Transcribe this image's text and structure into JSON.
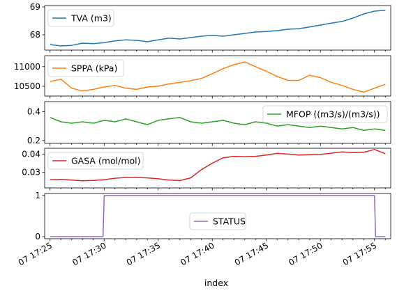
{
  "chart_data": {
    "type": "line",
    "xlabel": "index",
    "x_ticks": [
      "07 17:25",
      "07 17:30",
      "07 17:35",
      "07 17:40",
      "07 17:45",
      "07 17:50",
      "07 17:55"
    ],
    "x_range_minutes": [
      -0.5,
      31.5
    ],
    "panels": [
      {
        "series": [
          {
            "name": "TVA (m3)",
            "color": "#1f77b4"
          }
        ],
        "legend": "upper-left",
        "ylim": [
          67.45,
          69.05
        ],
        "yticks": [
          {
            "value": 68,
            "label": "68"
          },
          {
            "value": 69,
            "label": "69"
          }
        ],
        "points": [
          [
            0,
            67.65
          ],
          [
            1,
            67.6
          ],
          [
            2,
            67.62
          ],
          [
            3,
            67.7
          ],
          [
            4,
            67.68
          ],
          [
            5,
            67.72
          ],
          [
            6,
            67.78
          ],
          [
            7,
            67.82
          ],
          [
            8,
            67.8
          ],
          [
            9,
            67.75
          ],
          [
            10,
            67.82
          ],
          [
            11,
            67.88
          ],
          [
            12,
            67.85
          ],
          [
            13,
            67.9
          ],
          [
            14,
            67.95
          ],
          [
            15,
            67.98
          ],
          [
            16,
            67.95
          ],
          [
            17,
            68.0
          ],
          [
            18,
            68.05
          ],
          [
            19,
            68.1
          ],
          [
            20,
            68.12
          ],
          [
            21,
            68.15
          ],
          [
            22,
            68.2
          ],
          [
            23,
            68.22
          ],
          [
            24,
            68.28
          ],
          [
            25,
            68.35
          ],
          [
            26,
            68.42
          ],
          [
            27,
            68.48
          ],
          [
            28,
            68.6
          ],
          [
            29,
            68.75
          ],
          [
            30,
            68.85
          ],
          [
            31,
            68.88
          ]
        ]
      },
      {
        "series": [
          {
            "name": "SPPA (kPa)",
            "color": "#ff7f0e"
          }
        ],
        "legend": "upper-left",
        "ylim": [
          10250,
          11280
        ],
        "yticks": [
          {
            "value": 10500,
            "label": "10500"
          },
          {
            "value": 11000,
            "label": "11000"
          }
        ],
        "points": [
          [
            0,
            10620
          ],
          [
            1,
            10680
          ],
          [
            2,
            10450
          ],
          [
            3,
            10380
          ],
          [
            4,
            10420
          ],
          [
            5,
            10480
          ],
          [
            6,
            10520
          ],
          [
            7,
            10450
          ],
          [
            8,
            10420
          ],
          [
            9,
            10480
          ],
          [
            10,
            10500
          ],
          [
            11,
            10560
          ],
          [
            12,
            10600
          ],
          [
            13,
            10640
          ],
          [
            14,
            10700
          ],
          [
            15,
            10820
          ],
          [
            16,
            10950
          ],
          [
            17,
            11050
          ],
          [
            18,
            11120
          ],
          [
            19,
            11000
          ],
          [
            20,
            10880
          ],
          [
            21,
            10750
          ],
          [
            22,
            10650
          ],
          [
            23,
            10650
          ],
          [
            24,
            10780
          ],
          [
            25,
            10720
          ],
          [
            26,
            10600
          ],
          [
            27,
            10520
          ],
          [
            28,
            10420
          ],
          [
            29,
            10350
          ],
          [
            30,
            10450
          ],
          [
            31,
            10550
          ]
        ]
      },
      {
        "series": [
          {
            "name": "MFOP ((m3/s)/(m3/s))",
            "color": "#2ca02c"
          }
        ],
        "legend": "upper-right",
        "ylim": [
          0.18,
          0.47
        ],
        "yticks": [
          {
            "value": 0.2,
            "label": "0.2"
          },
          {
            "value": 0.4,
            "label": "0.4"
          }
        ],
        "points": [
          [
            0,
            0.36
          ],
          [
            1,
            0.33
          ],
          [
            2,
            0.32
          ],
          [
            3,
            0.33
          ],
          [
            4,
            0.32
          ],
          [
            5,
            0.34
          ],
          [
            6,
            0.33
          ],
          [
            7,
            0.35
          ],
          [
            8,
            0.33
          ],
          [
            9,
            0.31
          ],
          [
            10,
            0.34
          ],
          [
            11,
            0.35
          ],
          [
            12,
            0.36
          ],
          [
            13,
            0.33
          ],
          [
            14,
            0.32
          ],
          [
            15,
            0.33
          ],
          [
            16,
            0.34
          ],
          [
            17,
            0.32
          ],
          [
            18,
            0.31
          ],
          [
            19,
            0.33
          ],
          [
            20,
            0.32
          ],
          [
            21,
            0.3
          ],
          [
            22,
            0.31
          ],
          [
            23,
            0.3
          ],
          [
            24,
            0.29
          ],
          [
            25,
            0.3
          ],
          [
            26,
            0.29
          ],
          [
            27,
            0.28
          ],
          [
            28,
            0.29
          ],
          [
            29,
            0.27
          ],
          [
            30,
            0.28
          ],
          [
            31,
            0.27
          ]
        ]
      },
      {
        "series": [
          {
            "name": "GASA (mol/mol)",
            "color": "#d62728"
          }
        ],
        "legend": "upper-left",
        "ylim": [
          0.0215,
          0.0432
        ],
        "yticks": [
          {
            "value": 0.03,
            "label": "0.03"
          },
          {
            "value": 0.04,
            "label": "0.04"
          }
        ],
        "points": [
          [
            0,
            0.026
          ],
          [
            1,
            0.0262
          ],
          [
            2,
            0.0258
          ],
          [
            3,
            0.0254
          ],
          [
            4,
            0.0256
          ],
          [
            5,
            0.026
          ],
          [
            6,
            0.0268
          ],
          [
            7,
            0.0272
          ],
          [
            8,
            0.0272
          ],
          [
            9,
            0.027
          ],
          [
            10,
            0.0265
          ],
          [
            11,
            0.0258
          ],
          [
            12,
            0.0255
          ],
          [
            13,
            0.027
          ],
          [
            14,
            0.0315
          ],
          [
            15,
            0.035
          ],
          [
            16,
            0.038
          ],
          [
            17,
            0.0388
          ],
          [
            18,
            0.0386
          ],
          [
            19,
            0.0388
          ],
          [
            20,
            0.0395
          ],
          [
            21,
            0.0404
          ],
          [
            22,
            0.04
          ],
          [
            23,
            0.0395
          ],
          [
            24,
            0.0397
          ],
          [
            25,
            0.0398
          ],
          [
            26,
            0.0405
          ],
          [
            27,
            0.0412
          ],
          [
            28,
            0.0408
          ],
          [
            29,
            0.041
          ],
          [
            30,
            0.0425
          ],
          [
            31,
            0.0402
          ]
        ]
      },
      {
        "series": [
          {
            "name": "STATUS",
            "color": "#9467bd"
          }
        ],
        "legend": "lower-center",
        "ylim": [
          -0.05,
          1.05
        ],
        "yticks": [
          {
            "value": 0,
            "label": "0"
          },
          {
            "value": 1,
            "label": "1"
          }
        ],
        "points": [
          [
            0,
            0
          ],
          [
            4.9,
            0
          ],
          [
            5,
            1
          ],
          [
            30,
            1
          ],
          [
            30.1,
            0
          ],
          [
            31,
            0
          ]
        ]
      }
    ]
  }
}
